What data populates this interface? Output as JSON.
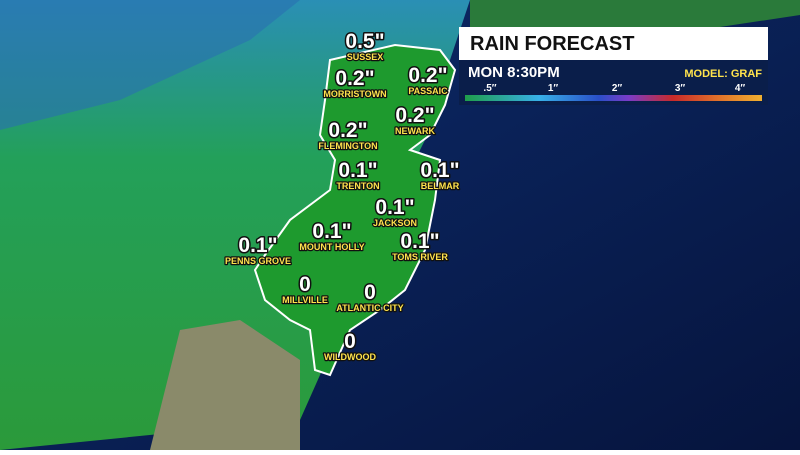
{
  "header": {
    "title": "RAIN FORECAST",
    "time": "MON 8:30PM",
    "model": "MODEL: GRAF"
  },
  "legend": {
    "labels": [
      ".5″",
      "1″",
      "2″",
      "3″",
      "4″"
    ]
  },
  "locations": [
    {
      "amount": "0.5\"",
      "name": "SUSSEX"
    },
    {
      "amount": "0.2\"",
      "name": "MORRISTOWN"
    },
    {
      "amount": "0.2\"",
      "name": "PASSAIC"
    },
    {
      "amount": "0.2\"",
      "name": "NEWARK"
    },
    {
      "amount": "0.2\"",
      "name": "FLEMINGTON"
    },
    {
      "amount": "0.1\"",
      "name": "TRENTON"
    },
    {
      "amount": "0.1\"",
      "name": "BELMAR"
    },
    {
      "amount": "0.1\"",
      "name": "JACKSON"
    },
    {
      "amount": "0.1\"",
      "name": "MOUNT HOLLY"
    },
    {
      "amount": "0.1\"",
      "name": "PENNS GROVE"
    },
    {
      "amount": "0.1\"",
      "name": "TOMS RIVER"
    },
    {
      "amount": "0",
      "name": "MILLVILLE"
    },
    {
      "amount": "0",
      "name": "ATLANTIC CITY"
    },
    {
      "amount": "0",
      "name": "WILDWOOD"
    }
  ]
}
